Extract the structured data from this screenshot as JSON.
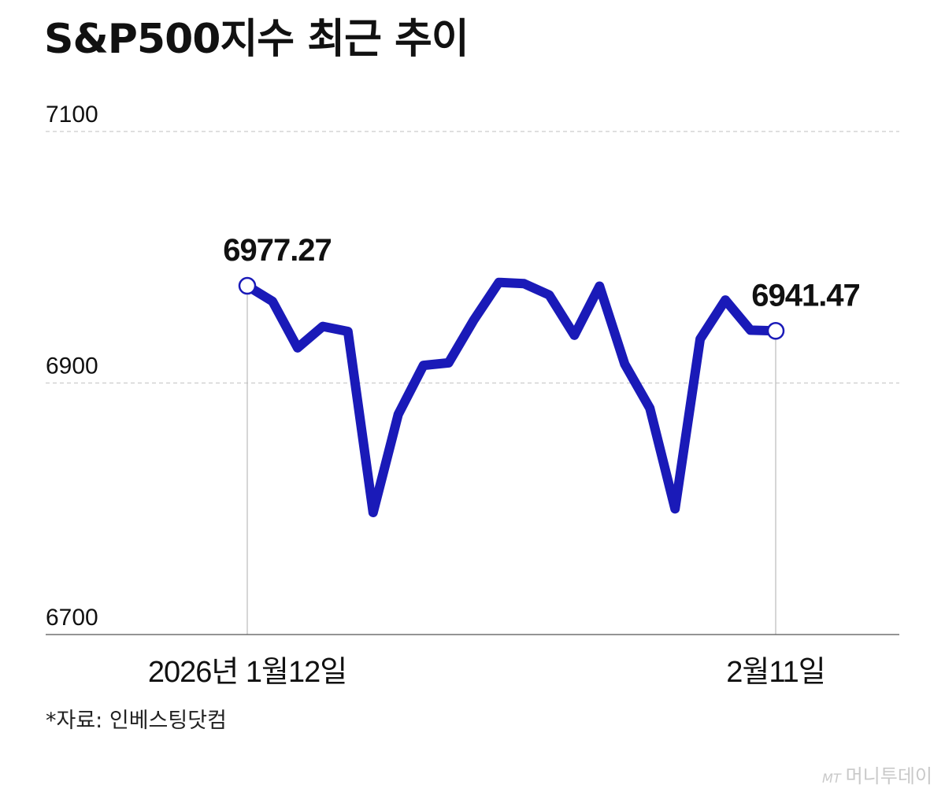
{
  "title": "S&P500지수 최근 추이",
  "source": "*자료: 인베스팅닷컴",
  "brand": {
    "mark": "MT",
    "name": "머니투데이"
  },
  "chart_data": {
    "type": "line",
    "title": "S&P500지수 최근 추이",
    "xlabel": "",
    "ylabel": "",
    "ylim": [
      6700,
      7100
    ],
    "yticks": [
      "7100",
      "6900",
      "6700"
    ],
    "grid": true,
    "x_labels": {
      "start": "2026년 1월12일",
      "end": "2월11일"
    },
    "series": [
      {
        "color": "#1a1ab8",
        "values": [
          6977.27,
          6965,
          6928,
          6945,
          6941,
          6797,
          6875,
          6914,
          6916,
          6950,
          6980,
          6979,
          6970,
          6938,
          6977,
          6915,
          6880,
          6800,
          6935,
          6966,
          6942,
          6941.47
        ]
      }
    ],
    "annotations": [
      {
        "index": 0,
        "label": "6977.27"
      },
      {
        "index": 21,
        "label": "6941.47"
      }
    ]
  }
}
